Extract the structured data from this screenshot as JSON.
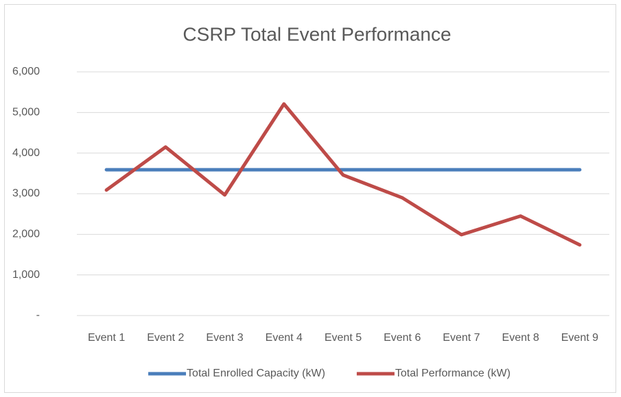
{
  "chart_data": {
    "type": "line",
    "title": "CSRP Total Event Performance",
    "categories": [
      "Event 1",
      "Event 2",
      "Event 3",
      "Event 4",
      "Event 5",
      "Event 6",
      "Event 7",
      "Event 8",
      "Event 9"
    ],
    "series": [
      {
        "name": "Total Enrolled Capacity (kW)",
        "color": "#4a7ebb",
        "values": [
          3590,
          3590,
          3590,
          3590,
          3590,
          3590,
          3590,
          3590,
          3590
        ]
      },
      {
        "name": "Total Performance (kW)",
        "color": "#be4b48",
        "values": [
          3090,
          4150,
          2970,
          5210,
          3460,
          2900,
          1990,
          2450,
          1740
        ]
      }
    ],
    "ylim": [
      0,
      6000
    ],
    "yticks": [
      {
        "value": 0,
        "label": "-"
      },
      {
        "value": 1000,
        "label": "1,000"
      },
      {
        "value": 2000,
        "label": "2,000"
      },
      {
        "value": 3000,
        "label": "3,000"
      },
      {
        "value": 4000,
        "label": "4,000"
      },
      {
        "value": 5000,
        "label": "5,000"
      },
      {
        "value": 6000,
        "label": "6,000"
      }
    ],
    "grid": true,
    "legend": "bottom"
  }
}
